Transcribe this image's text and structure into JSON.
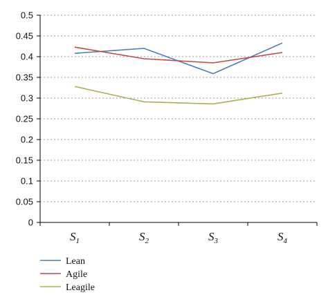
{
  "chart_data": {
    "type": "line",
    "categories": [
      {
        "base": "S",
        "sub": "1"
      },
      {
        "base": "S",
        "sub": "2"
      },
      {
        "base": "S",
        "sub": "3"
      },
      {
        "base": "S",
        "sub": "4"
      }
    ],
    "series": [
      {
        "name": "Lean",
        "values": [
          0.408,
          0.42,
          0.359,
          0.433
        ],
        "color": "#4a7ebb"
      },
      {
        "name": "Agile",
        "values": [
          0.423,
          0.395,
          0.385,
          0.41
        ],
        "color": "#be4b48"
      },
      {
        "name": "Leagile",
        "values": [
          0.328,
          0.291,
          0.286,
          0.312
        ],
        "color": "#98b954"
      }
    ],
    "ylim": [
      0,
      0.5
    ],
    "yticks": [
      "0",
      "0.05",
      "0.1",
      "0.15",
      "0.2",
      "0.25",
      "0.3",
      "0.35",
      "0.4",
      "0.45",
      "0.5"
    ],
    "grid": true,
    "legend_position": "bottom-left",
    "title": "",
    "xlabel": "",
    "ylabel": ""
  }
}
